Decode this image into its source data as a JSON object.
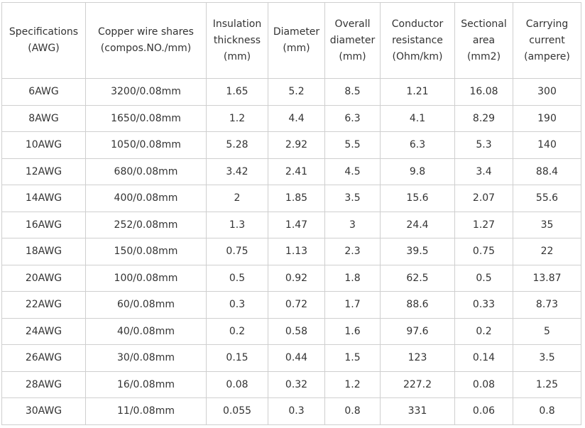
{
  "table": {
    "header": [
      [
        "Specifications",
        "(AWG)"
      ],
      [
        "Copper wire shares",
        "(compos.NO./mm)"
      ],
      [
        "Insulation",
        "thickness",
        "(mm)"
      ],
      [
        "Diameter",
        "(mm)"
      ],
      [
        "Overall",
        "diameter",
        "(mm)"
      ],
      [
        "Conductor",
        "resistance",
        "(Ohm/km)"
      ],
      [
        "Sectional",
        "area",
        "(mm2)"
      ],
      [
        "Carrying",
        "current",
        "(ampere)"
      ]
    ],
    "rows": [
      [
        "6AWG",
        "3200/0.08mm",
        "1.65",
        "5.2",
        "8.5",
        "1.21",
        "16.08",
        "300"
      ],
      [
        "8AWG",
        "1650/0.08mm",
        "1.2",
        "4.4",
        "6.3",
        "4.1",
        "8.29",
        "190"
      ],
      [
        "10AWG",
        "1050/0.08mm",
        "5.28",
        "2.92",
        "5.5",
        "6.3",
        "5.3",
        "140"
      ],
      [
        "12AWG",
        "680/0.08mm",
        "3.42",
        "2.41",
        "4.5",
        "9.8",
        "3.4",
        "88.4"
      ],
      [
        "14AWG",
        "400/0.08mm",
        "2",
        "1.85",
        "3.5",
        "15.6",
        "2.07",
        "55.6"
      ],
      [
        "16AWG",
        "252/0.08mm",
        "1.3",
        "1.47",
        "3",
        "24.4",
        "1.27",
        "35"
      ],
      [
        "18AWG",
        "150/0.08mm",
        "0.75",
        "1.13",
        "2.3",
        "39.5",
        "0.75",
        "22"
      ],
      [
        "20AWG",
        "100/0.08mm",
        "0.5",
        "0.92",
        "1.8",
        "62.5",
        "0.5",
        "13.87"
      ],
      [
        "22AWG",
        "60/0.08mm",
        "0.3",
        "0.72",
        "1.7",
        "88.6",
        "0.33",
        "8.73"
      ],
      [
        "24AWG",
        "40/0.08mm",
        "0.2",
        "0.58",
        "1.6",
        "97.6",
        "0.2",
        "5"
      ],
      [
        "26AWG",
        "30/0.08mm",
        "0.15",
        "0.44",
        "1.5",
        "123",
        "0.14",
        "3.5"
      ],
      [
        "28AWG",
        "16/0.08mm",
        "0.08",
        "0.32",
        "1.2",
        "227.2",
        "0.08",
        "1.25"
      ],
      [
        "30AWG",
        "11/0.08mm",
        "0.055",
        "0.3",
        "0.8",
        "331",
        "0.06",
        "0.8"
      ]
    ]
  }
}
